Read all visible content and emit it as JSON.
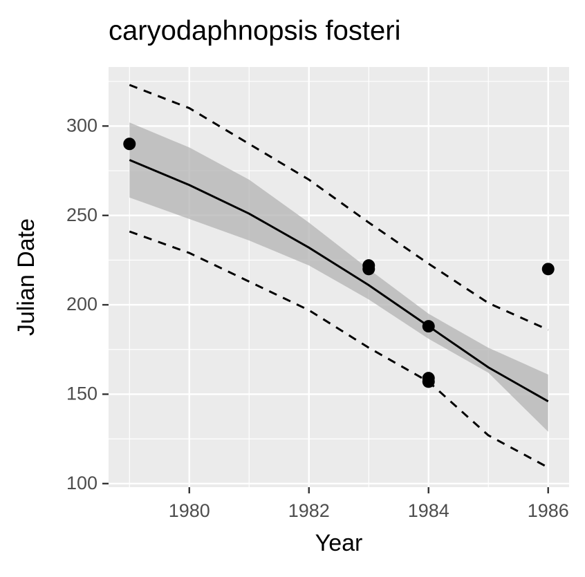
{
  "chart_data": {
    "type": "scatter-fit",
    "title": "caryodaphnopsis fosteri",
    "x_label": "Year",
    "y_label": "Julian Date",
    "xlim": [
      1978.65,
      1986.35
    ],
    "ylim": [
      98,
      333
    ],
    "xticks": [
      1980,
      1982,
      1984,
      1986
    ],
    "yticks": [
      100,
      150,
      200,
      250,
      300
    ],
    "xminorticks": [
      1979,
      1981,
      1983,
      1985
    ],
    "yminorticks": [
      125,
      175,
      225,
      275,
      325
    ],
    "grid": true,
    "points": {
      "color": "#000000",
      "x": [
        1979,
        1983,
        1983,
        1984,
        1984,
        1984,
        1986
      ],
      "y": [
        290,
        222,
        220,
        188,
        159,
        157,
        220
      ]
    },
    "fit": {
      "color": "#000000",
      "band_color": "#b3b3b3",
      "x": [
        1979,
        1980,
        1981,
        1982,
        1983,
        1984,
        1985,
        1986
      ],
      "values": [
        281,
        267,
        251,
        232,
        211,
        188,
        165,
        146
      ],
      "lower": [
        260,
        248,
        236,
        222,
        203,
        181,
        162,
        129
      ],
      "upper": [
        302,
        288,
        270,
        246,
        220,
        195,
        176,
        161
      ]
    },
    "prediction": {
      "color": "#000000",
      "x": [
        1979,
        1980,
        1981,
        1982,
        1983,
        1984,
        1985,
        1986
      ],
      "lower": [
        241,
        229,
        213,
        197,
        176,
        157,
        127,
        109
      ],
      "upper": [
        323,
        310,
        290,
        270,
        246,
        223,
        201,
        186
      ]
    }
  }
}
